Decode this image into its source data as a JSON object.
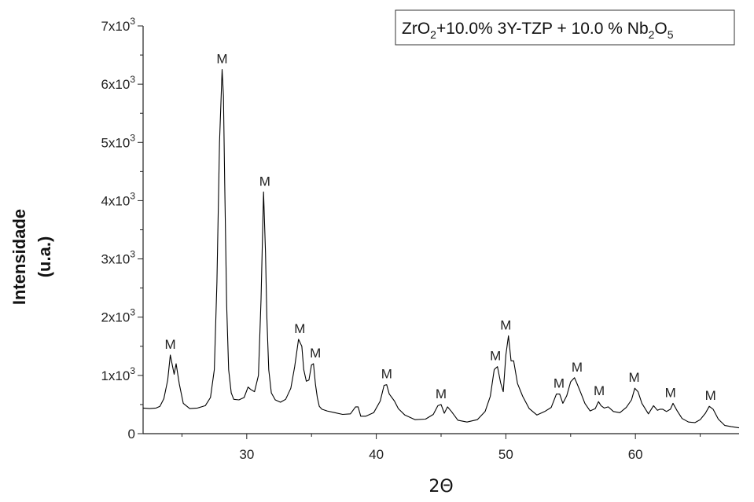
{
  "chart_data": {
    "type": "line",
    "title": "",
    "xlabel": "2Θ",
    "ylabel": [
      "Intensidade",
      "(u.a.)"
    ],
    "xlim": [
      22,
      68
    ],
    "ylim": [
      0,
      7000
    ],
    "grid": false,
    "legend": {
      "placement": "top-right",
      "parts": [
        {
          "t": "ZrO"
        },
        {
          "t": "2",
          "sub": true
        },
        {
          "t": "+10.0% 3Y-TZP + 10.0 % Nb"
        },
        {
          "t": "2",
          "sub": true
        },
        {
          "t": "O"
        },
        {
          "t": "5",
          "sub": true
        }
      ]
    },
    "x_ticks": [
      {
        "value": 30,
        "label": "30"
      },
      {
        "value": 40,
        "label": "40"
      },
      {
        "value": 50,
        "label": "50"
      },
      {
        "value": 60,
        "label": "60"
      }
    ],
    "y_ticks": [
      {
        "value": 0,
        "base": "0",
        "exp": ""
      },
      {
        "value": 1000,
        "base": "1x10",
        "exp": "3"
      },
      {
        "value": 2000,
        "base": "2x10",
        "exp": "3"
      },
      {
        "value": 3000,
        "base": "3x10",
        "exp": "3"
      },
      {
        "value": 4000,
        "base": "4x10",
        "exp": "3"
      },
      {
        "value": 5000,
        "base": "5x10",
        "exp": "3"
      },
      {
        "value": 6000,
        "base": "6x10",
        "exp": "3"
      },
      {
        "value": 7000,
        "base": "7x10",
        "exp": "3"
      }
    ],
    "series": [
      {
        "name": "",
        "color": "#000000",
        "x": [
          22.0,
          22.5,
          23.0,
          23.3,
          23.6,
          23.9,
          24.1,
          24.25,
          24.4,
          24.55,
          24.8,
          25.1,
          25.6,
          26.2,
          26.8,
          27.2,
          27.5,
          27.7,
          27.9,
          28.1,
          28.2,
          28.3,
          28.45,
          28.6,
          28.8,
          29.0,
          29.4,
          29.8,
          30.1,
          30.3,
          30.6,
          30.9,
          31.1,
          31.3,
          31.45,
          31.55,
          31.7,
          31.9,
          32.2,
          32.6,
          33.0,
          33.4,
          33.7,
          34.0,
          34.25,
          34.4,
          34.6,
          34.8,
          35.0,
          35.15,
          35.3,
          35.45,
          35.6,
          35.8,
          36.2,
          36.8,
          37.4,
          38.0,
          38.4,
          38.6,
          38.8,
          39.2,
          39.8,
          40.3,
          40.6,
          40.8,
          41.0,
          41.2,
          41.4,
          41.7,
          42.2,
          43.0,
          43.8,
          44.4,
          44.75,
          45.0,
          45.25,
          45.5,
          45.8,
          46.3,
          47.0,
          47.8,
          48.4,
          48.8,
          49.1,
          49.35,
          49.6,
          49.8,
          50.0,
          50.2,
          50.4,
          50.6,
          50.9,
          51.3,
          51.8,
          52.4,
          53.0,
          53.5,
          53.9,
          54.15,
          54.4,
          54.7,
          55.0,
          55.3,
          55.55,
          55.8,
          56.1,
          56.5,
          56.9,
          57.15,
          57.35,
          57.6,
          57.9,
          58.3,
          58.8,
          59.3,
          59.7,
          59.95,
          60.2,
          60.5,
          61.0,
          61.4,
          61.7,
          61.9,
          62.1,
          62.4,
          62.7,
          62.9,
          63.2,
          63.6,
          64.1,
          64.6,
          65.0,
          65.4,
          65.7,
          66.0,
          66.4,
          66.9,
          67.4,
          68.0
        ],
        "y": [
          440,
          430,
          440,
          470,
          600,
          920,
          1350,
          1180,
          1020,
          1200,
          850,
          520,
          430,
          440,
          480,
          620,
          1100,
          2600,
          5000,
          6250,
          5800,
          4300,
          2200,
          1100,
          700,
          590,
          580,
          620,
          800,
          760,
          720,
          1000,
          2300,
          4150,
          3100,
          2000,
          1100,
          700,
          580,
          540,
          590,
          780,
          1150,
          1620,
          1500,
          1100,
          900,
          920,
          1180,
          1200,
          850,
          620,
          470,
          420,
          390,
          360,
          330,
          340,
          460,
          460,
          300,
          300,
          360,
          560,
          830,
          840,
          680,
          620,
          560,
          430,
          320,
          240,
          250,
          330,
          480,
          500,
          350,
          460,
          380,
          230,
          200,
          240,
          380,
          640,
          1100,
          1150,
          870,
          720,
          1350,
          1680,
          1250,
          1250,
          860,
          640,
          430,
          320,
          380,
          450,
          680,
          680,
          520,
          650,
          890,
          960,
          830,
          690,
          520,
          390,
          430,
          550,
          480,
          440,
          460,
          380,
          360,
          450,
          580,
          780,
          720,
          520,
          340,
          480,
          400,
          420,
          420,
          380,
          420,
          520,
          400,
          260,
          200,
          190,
          240,
          350,
          470,
          420,
          250,
          140,
          120,
          100
        ]
      }
    ],
    "annotations": [
      {
        "text": "M",
        "x": 24.1,
        "y": 1350
      },
      {
        "text": "M",
        "x": 28.1,
        "y": 6250
      },
      {
        "text": "M",
        "x": 31.4,
        "y": 4150
      },
      {
        "text": "M",
        "x": 34.1,
        "y": 1620
      },
      {
        "text": "M",
        "x": 35.3,
        "y": 1200
      },
      {
        "text": "M",
        "x": 40.8,
        "y": 840
      },
      {
        "text": "M",
        "x": 45.0,
        "y": 500
      },
      {
        "text": "M",
        "x": 49.2,
        "y": 1150
      },
      {
        "text": "M",
        "x": 50.0,
        "y": 1680
      },
      {
        "text": "M",
        "x": 54.1,
        "y": 680
      },
      {
        "text": "M",
        "x": 55.5,
        "y": 960
      },
      {
        "text": "M",
        "x": 57.2,
        "y": 550
      },
      {
        "text": "M",
        "x": 59.9,
        "y": 780
      },
      {
        "text": "M",
        "x": 62.7,
        "y": 520
      },
      {
        "text": "M",
        "x": 65.8,
        "y": 470
      }
    ]
  }
}
